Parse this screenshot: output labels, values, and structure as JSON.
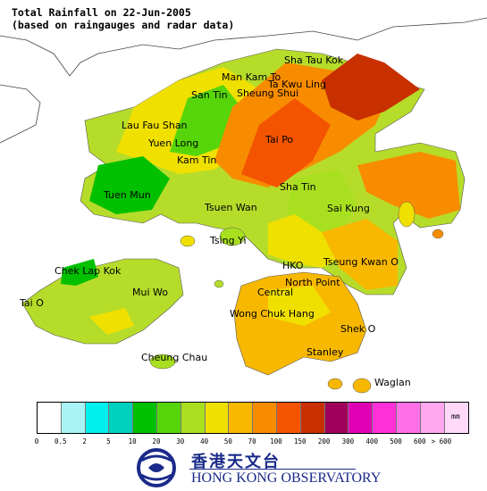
{
  "title": {
    "line1": "Total Rainfall on 22-Jun-2005",
    "line2": "(based on raingauges and radar data)"
  },
  "places": [
    "Sha Tau Kok",
    "Man Kam To",
    "Ta Kwu Ling",
    "San Tin",
    "Sheung Shui",
    "Lau Fau Shan",
    "Yuen Long",
    "Tai Po",
    "Kam Tin",
    "Tuen Mun",
    "Sha Tin",
    "Tsuen Wan",
    "Sai Kung",
    "Tsing Yi",
    "Chek Lap Kok",
    "HKO",
    "Tseung Kwan O",
    "North Point",
    "Mui Wo",
    "Central",
    "Tai O",
    "Wong Chuk Hang",
    "Shek O",
    "Cheung Chau",
    "Stanley",
    "Waglan"
  ],
  "legend": {
    "unit": "mm",
    "colors": [
      "#ffffff",
      "#a8f4f4",
      "#00f0f0",
      "#00d0c0",
      "#00c000",
      "#56d60a",
      "#a8e020",
      "#f0e000",
      "#f8b800",
      "#f88c00",
      "#f45400",
      "#c83000",
      "#a0005a",
      "#e000b4",
      "#ff30d8",
      "#ff70e8",
      "#ffa8f0",
      "#ffd8fa"
    ],
    "labels": [
      "0",
      "0.5",
      "2",
      "5",
      "10",
      "20",
      "30",
      "40",
      "50",
      "70",
      "100",
      "150",
      "200",
      "300",
      "400",
      "500",
      "600",
      "> 600"
    ]
  },
  "logo": {
    "chinese": "香港天文台",
    "english": "HONG KONG OBSERVATORY"
  }
}
